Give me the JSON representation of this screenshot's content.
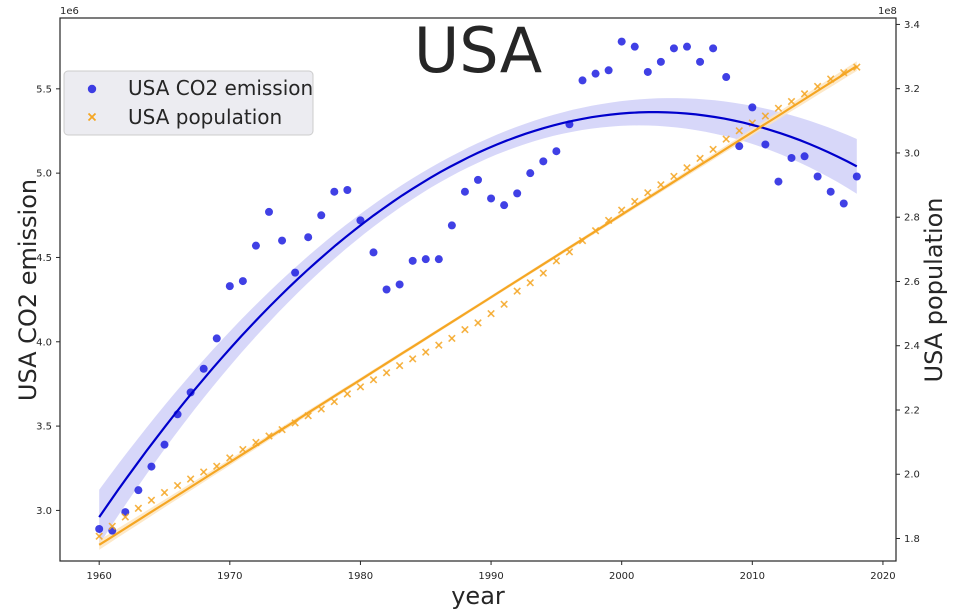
{
  "chart_data": {
    "type": "scatter",
    "title": "USA",
    "xlabel": "year",
    "ylabel_left": "USA  CO2 emission",
    "ylabel_right": "USA  population",
    "left_offset": "1e6",
    "right_offset": "1e8",
    "xlim": [
      1957,
      2021
    ],
    "ylim_left": [
      2.7,
      5.92
    ],
    "ylim_right": [
      1.73,
      3.42
    ],
    "xticks": [
      1960,
      1970,
      1980,
      1990,
      2000,
      2010,
      2020
    ],
    "yticks_left": [
      3.0,
      3.5,
      4.0,
      4.5,
      5.0,
      5.5
    ],
    "yticks_right": [
      1.8,
      2.0,
      2.2,
      2.4,
      2.6,
      2.8,
      3.0,
      3.2,
      3.4
    ],
    "legend_position": "upper-left",
    "grid": false,
    "years": [
      1960,
      1961,
      1962,
      1963,
      1964,
      1965,
      1966,
      1967,
      1968,
      1969,
      1970,
      1971,
      1972,
      1973,
      1974,
      1975,
      1976,
      1977,
      1978,
      1979,
      1980,
      1981,
      1982,
      1983,
      1984,
      1985,
      1986,
      1987,
      1988,
      1989,
      1990,
      1991,
      1992,
      1993,
      1994,
      1995,
      1996,
      1997,
      1998,
      1999,
      2000,
      2001,
      2002,
      2003,
      2004,
      2005,
      2006,
      2007,
      2008,
      2009,
      2010,
      2011,
      2012,
      2013,
      2014,
      2015,
      2016,
      2017,
      2018
    ],
    "series": [
      {
        "name": "USA  CO2 emission",
        "axis": "left",
        "marker": "circle",
        "color": "#1f1fe0",
        "fit_color": "#0000cc",
        "band_color": "#d0d0f8",
        "values": [
          2.89,
          2.88,
          2.99,
          3.12,
          3.26,
          3.39,
          3.57,
          3.7,
          3.84,
          4.02,
          4.33,
          4.36,
          4.57,
          4.77,
          4.6,
          4.41,
          4.62,
          4.75,
          4.89,
          4.9,
          4.72,
          4.53,
          4.31,
          4.34,
          4.48,
          4.49,
          4.49,
          4.69,
          4.89,
          4.96,
          4.85,
          4.81,
          4.88,
          5.0,
          5.07,
          5.13,
          5.29,
          5.55,
          5.59,
          5.61,
          5.78,
          5.75,
          5.6,
          5.66,
          5.74,
          5.75,
          5.66,
          5.74,
          5.57,
          5.16,
          5.39,
          5.17,
          4.95,
          5.09,
          5.1,
          4.98,
          4.89,
          4.82,
          4.98
        ]
      },
      {
        "name": "USA  population",
        "axis": "right",
        "marker": "x",
        "color": "#f5a623",
        "fit_color": "#f5a623",
        "band_color": "#fde5c0",
        "values": [
          1.807,
          1.838,
          1.867,
          1.894,
          1.919,
          1.943,
          1.965,
          1.985,
          2.007,
          2.025,
          2.051,
          2.077,
          2.099,
          2.119,
          2.139,
          2.16,
          2.182,
          2.203,
          2.226,
          2.25,
          2.272,
          2.294,
          2.316,
          2.338,
          2.359,
          2.38,
          2.402,
          2.423,
          2.45,
          2.471,
          2.5,
          2.529,
          2.57,
          2.596,
          2.626,
          2.664,
          2.692,
          2.727,
          2.758,
          2.79,
          2.822,
          2.849,
          2.876,
          2.901,
          2.927,
          2.954,
          2.983,
          3.011,
          3.043,
          3.069,
          3.093,
          3.115,
          3.139,
          3.16,
          3.184,
          3.207,
          3.23,
          3.25,
          3.267
        ]
      }
    ]
  }
}
